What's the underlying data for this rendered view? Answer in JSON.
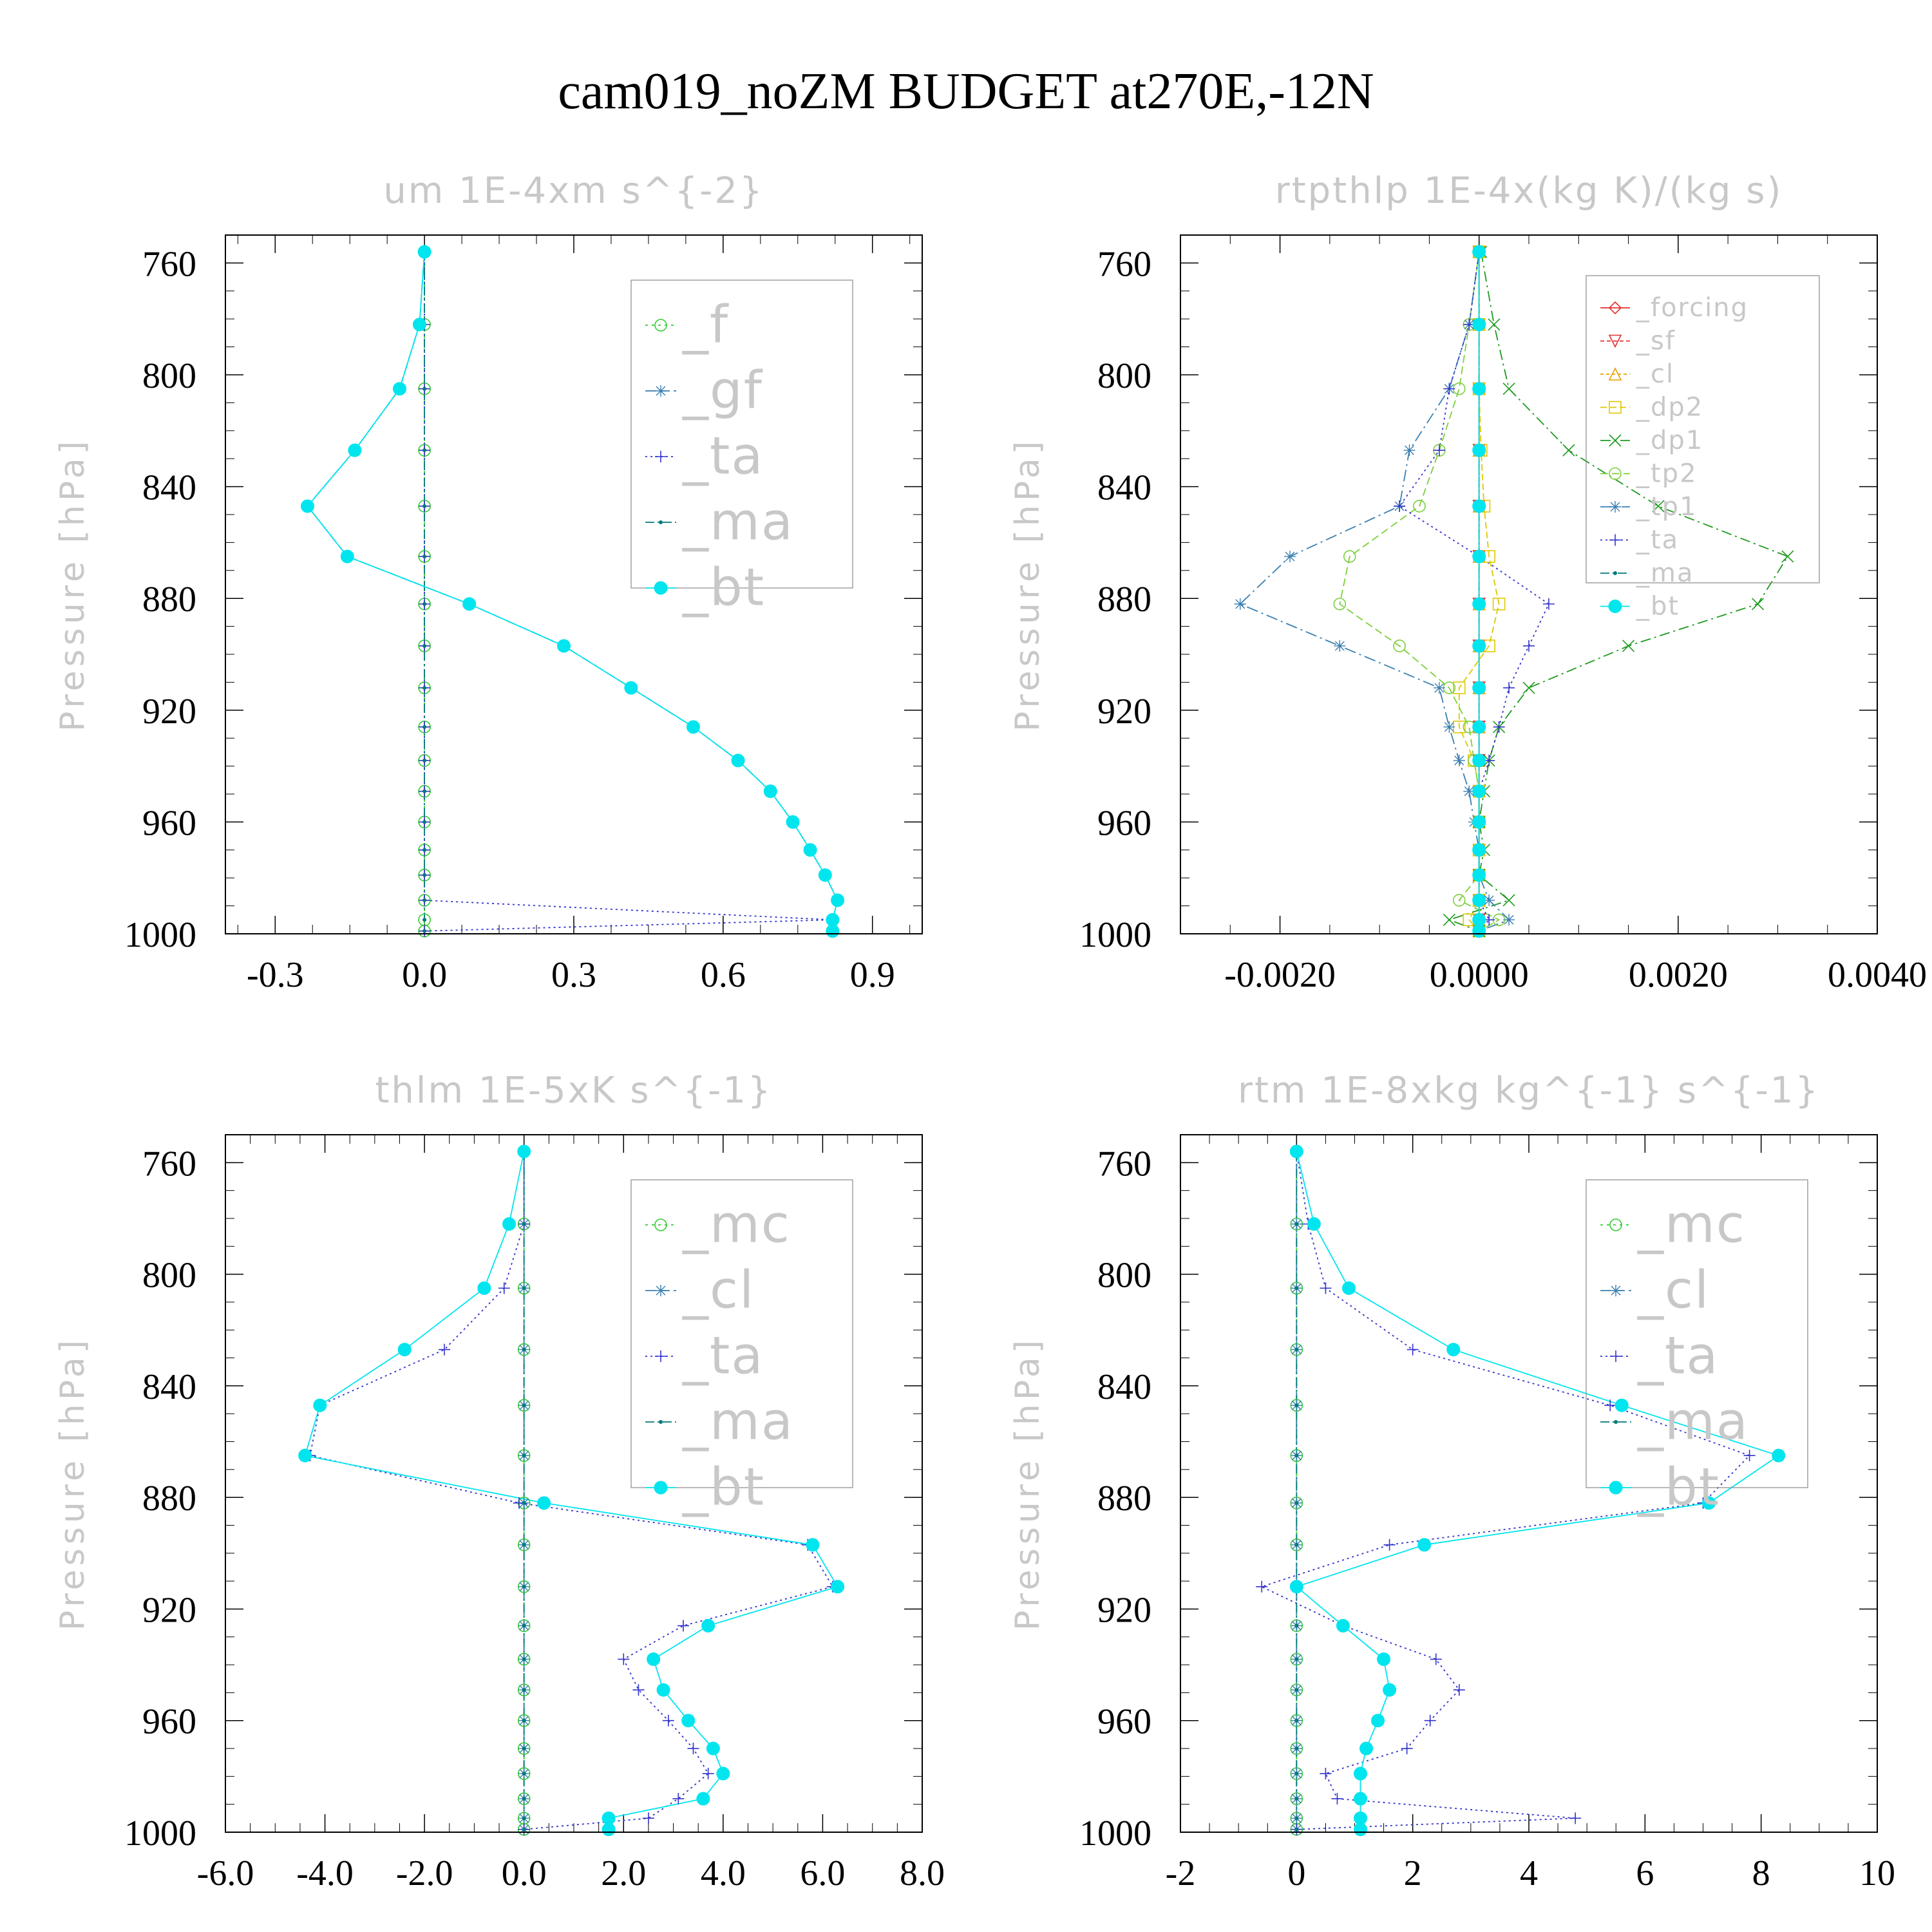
{
  "figure": {
    "title": "cam019_noZM  BUDGET at270E,-12N"
  },
  "colors": {
    "green": "#33cc33",
    "steel": "#3a7fb0",
    "blue": "#3333cc",
    "teal": "#007a7a",
    "cyan": "#00e5ee",
    "red": "#e03030",
    "orange": "#e8a000",
    "yellow": "#e0c800",
    "darkgreen": "#1e9a1e",
    "lightgreen": "#7ccf3c",
    "axis": "#000000",
    "label": "#c8c8c8"
  },
  "chart_data": [
    {
      "type": "line",
      "title": "um   1E-4xm s^{-2}",
      "ylabel": "Pressure [hPa]",
      "xlim": [
        -0.4,
        1.0
      ],
      "xticks": [
        "-0.3",
        "0.0",
        "0.3",
        "0.6",
        "0.9"
      ],
      "xtick_values": [
        -0.3,
        0.0,
        0.3,
        0.6,
        0.9
      ],
      "ylim": [
        1000,
        750
      ],
      "yticks": [
        "760",
        "800",
        "840",
        "880",
        "920",
        "960",
        "1000"
      ],
      "ytick_values": [
        760,
        800,
        840,
        880,
        920,
        960,
        1000
      ],
      "legend": "top-right",
      "y": [
        756,
        782,
        805,
        827,
        847,
        865,
        882,
        897,
        912,
        926,
        938,
        949,
        960,
        970,
        979,
        988,
        995,
        999
      ],
      "series": [
        {
          "name": "_f",
          "color": "green",
          "marker": "circle-open",
          "dash": "4,6",
          "values": [
            0,
            0,
            0,
            0,
            0,
            0,
            0,
            0,
            0,
            0,
            0,
            0,
            0,
            0,
            0,
            0,
            0,
            0
          ]
        },
        {
          "name": "_gf",
          "color": "steel",
          "marker": "star",
          "dash": "16,6",
          "values": [
            0.0,
            -0.01,
            -0.05,
            -0.14,
            -0.235,
            -0.155,
            0.09,
            0.28,
            0.415,
            0.54,
            0.63,
            0.695,
            0.74,
            0.775,
            0.805,
            0.83,
            0.82,
            0.82
          ]
        },
        {
          "name": "_ta",
          "color": "blue",
          "marker": "plus",
          "dash": "3,5",
          "values": [
            0,
            0,
            0,
            0,
            0,
            0,
            0,
            0,
            0,
            0,
            0,
            0,
            0,
            0,
            0,
            0,
            0.82,
            0.0
          ]
        },
        {
          "name": "_ma",
          "color": "teal",
          "marker": "dot",
          "dash": "14,5,3,5",
          "values": [
            0,
            0,
            0,
            0,
            0,
            0,
            0,
            0,
            0,
            0,
            0,
            0,
            0,
            0,
            0,
            0,
            0,
            0
          ]
        },
        {
          "name": "_bt",
          "color": "cyan",
          "marker": "filled-circle",
          "dash": "",
          "values": [
            0.0,
            -0.01,
            -0.05,
            -0.14,
            -0.235,
            -0.155,
            0.09,
            0.28,
            0.415,
            0.54,
            0.63,
            0.695,
            0.74,
            0.775,
            0.805,
            0.83,
            0.82,
            0.82
          ]
        }
      ]
    },
    {
      "type": "line",
      "title": "rtpthlp   1E-4x(kg K)/(kg s)",
      "ylabel": "Pressure [hPa]",
      "xlim": [
        -0.003,
        0.004
      ],
      "xticks": [
        "-0.0020",
        "0.0000",
        "0.0020",
        "0.0040"
      ],
      "xtick_values": [
        -0.002,
        0.0,
        0.002,
        0.004
      ],
      "ylim": [
        1000,
        750
      ],
      "yticks": [
        "760",
        "800",
        "840",
        "880",
        "920",
        "960",
        "1000"
      ],
      "ytick_values": [
        760,
        800,
        840,
        880,
        920,
        960,
        1000
      ],
      "legend": "top-right",
      "y": [
        756,
        782,
        805,
        827,
        847,
        865,
        882,
        897,
        912,
        926,
        938,
        949,
        960,
        970,
        979,
        988,
        995,
        999
      ],
      "series": [
        {
          "name": "_forcing",
          "color": "red",
          "marker": "diamond-open",
          "dash": "",
          "values": [
            0,
            0,
            0,
            0,
            0,
            0,
            0,
            0,
            0,
            0,
            0,
            0,
            0,
            0,
            0,
            0,
            0,
            0
          ]
        },
        {
          "name": "_sf",
          "color": "red",
          "marker": "triangle-down",
          "dash": "6,4",
          "values": [
            0,
            0,
            0,
            0,
            0,
            0,
            0,
            0,
            0,
            0,
            0,
            0,
            0,
            0,
            0,
            0,
            0,
            0
          ]
        },
        {
          "name": "_cl",
          "color": "orange",
          "marker": "triangle-up",
          "dash": "5,4",
          "values": [
            0,
            0,
            0,
            0,
            0,
            0,
            0,
            0,
            0,
            0,
            0,
            0,
            0,
            0,
            0,
            0,
            0,
            0
          ]
        },
        {
          "name": "_dp2",
          "color": "yellow",
          "marker": "square-open",
          "dash": "10,5",
          "values": [
            0.0,
            0.0,
            0.0,
            2e-05,
            5e-05,
            0.0001,
            0.0002,
            0.0001,
            -0.0002,
            -0.0002,
            -5e-05,
            0.0,
            0.0,
            0.0,
            0.0,
            0.0,
            -0.0001,
            0.0
          ]
        },
        {
          "name": "_dp1",
          "color": "darkgreen",
          "marker": "x",
          "dash": "16,6,3,6",
          "values": [
            2e-05,
            0.00015,
            0.0003,
            0.0009,
            0.0018,
            0.0031,
            0.0028,
            0.0015,
            0.0005,
            0.0002,
            0.0001,
            5e-05,
            0.0,
            5e-05,
            0.0,
            0.0003,
            -0.0003,
            0.0
          ]
        },
        {
          "name": "_tp2",
          "color": "lightgreen",
          "marker": "circle-open",
          "dash": "12,6",
          "values": [
            0.0,
            -0.0001,
            -0.0002,
            -0.0004,
            -0.0006,
            -0.0013,
            -0.0014,
            -0.0008,
            -0.0003,
            -0.0001,
            -5e-05,
            0.0,
            0.0,
            0.0,
            0.0,
            -0.0002,
            0.0002,
            0.0
          ]
        },
        {
          "name": "_tp1",
          "color": "steel",
          "marker": "star",
          "dash": "18,6,3,6",
          "values": [
            0.0,
            -0.0001,
            -0.0003,
            -0.0007,
            -0.0008,
            -0.0019,
            -0.0024,
            -0.0014,
            -0.0004,
            -0.0003,
            -0.0002,
            -0.0001,
            -5e-05,
            0.0,
            0.0,
            0.0001,
            0.0003,
            0.0
          ]
        },
        {
          "name": "_ta",
          "color": "blue",
          "marker": "plus",
          "dash": "3,5",
          "values": [
            0.0,
            -0.0001,
            -0.0003,
            -0.0004,
            -0.0008,
            0.0,
            0.0007,
            0.0005,
            0.0003,
            0.0002,
            0.0001,
            0.0,
            0.0,
            0.0,
            0.0,
            0.0,
            0.0001,
            0.0
          ]
        },
        {
          "name": "_ma",
          "color": "teal",
          "marker": "dot",
          "dash": "14,5,3,5",
          "values": [
            0,
            0,
            0,
            0,
            0,
            0,
            0,
            0,
            0,
            0,
            0,
            0,
            0,
            0,
            0,
            0,
            0,
            0
          ]
        },
        {
          "name": "_bt",
          "color": "cyan",
          "marker": "filled-circle",
          "dash": "",
          "values": [
            0,
            0,
            0,
            0,
            0,
            0,
            0,
            0,
            0,
            0,
            0,
            0,
            0,
            0,
            0,
            0,
            0,
            0
          ]
        }
      ]
    },
    {
      "type": "line",
      "title": "thlm   1E-5xK s^{-1}",
      "ylabel": "Pressure [hPa]",
      "xlim": [
        -6.0,
        8.0
      ],
      "xticks": [
        "-6.0",
        "-4.0",
        "-2.0",
        "0.0",
        "2.0",
        "4.0",
        "6.0",
        "8.0"
      ],
      "xtick_values": [
        -6.0,
        -4.0,
        -2.0,
        0.0,
        2.0,
        4.0,
        6.0,
        8.0
      ],
      "ylim": [
        1000,
        750
      ],
      "yticks": [
        "760",
        "800",
        "840",
        "880",
        "920",
        "960",
        "1000"
      ],
      "ytick_values": [
        760,
        800,
        840,
        880,
        920,
        960,
        1000
      ],
      "legend": "top-right",
      "y": [
        756,
        782,
        805,
        827,
        847,
        865,
        882,
        897,
        912,
        926,
        938,
        949,
        960,
        970,
        979,
        988,
        995,
        999
      ],
      "series": [
        {
          "name": "_mc",
          "color": "green",
          "marker": "circle-open",
          "dash": "4,6",
          "values": [
            0,
            0,
            0,
            0,
            0,
            0,
            0,
            0,
            0,
            0,
            0,
            0,
            0,
            0,
            0,
            0,
            0,
            0
          ]
        },
        {
          "name": "_cl",
          "color": "steel",
          "marker": "star",
          "dash": "16,6",
          "values": [
            0,
            0,
            0,
            0,
            0,
            0,
            0,
            0,
            0,
            0,
            0,
            0,
            0,
            0,
            0,
            0,
            0,
            0
          ]
        },
        {
          "name": "_ta",
          "color": "blue",
          "marker": "plus",
          "dash": "3,5",
          "values": [
            0.0,
            0.0,
            -0.4,
            -1.6,
            -4.1,
            -4.3,
            -0.1,
            5.7,
            6.2,
            3.2,
            2.0,
            2.3,
            2.9,
            3.4,
            3.7,
            3.1,
            2.5,
            0.0
          ]
        },
        {
          "name": "_ma",
          "color": "teal",
          "marker": "dot",
          "dash": "14,5,3,5",
          "values": [
            0,
            0,
            0,
            0,
            0,
            0,
            0,
            0,
            0,
            0,
            0,
            0,
            0,
            0,
            0,
            0,
            0,
            0
          ]
        },
        {
          "name": "_bt",
          "color": "cyan",
          "marker": "filled-circle",
          "dash": "",
          "values": [
            0.0,
            -0.3,
            -0.8,
            -2.4,
            -4.1,
            -4.4,
            0.4,
            5.8,
            6.3,
            3.7,
            2.6,
            2.8,
            3.3,
            3.8,
            4.0,
            3.6,
            1.7,
            1.7
          ]
        }
      ]
    },
    {
      "type": "line",
      "title": "rtm   1E-8xkg kg^{-1} s^{-1}",
      "ylabel": "Pressure [hPa]",
      "xlim": [
        -2,
        10
      ],
      "xticks": [
        "-2",
        "0",
        "2",
        "4",
        "6",
        "8",
        "10"
      ],
      "xtick_values": [
        -2,
        0,
        2,
        4,
        6,
        8,
        10
      ],
      "ylim": [
        1000,
        750
      ],
      "yticks": [
        "760",
        "800",
        "840",
        "880",
        "920",
        "960",
        "1000"
      ],
      "ytick_values": [
        760,
        800,
        840,
        880,
        920,
        960,
        1000
      ],
      "legend": "top-right",
      "y": [
        756,
        782,
        805,
        827,
        847,
        865,
        882,
        897,
        912,
        926,
        938,
        949,
        960,
        970,
        979,
        988,
        995,
        999
      ],
      "series": [
        {
          "name": "_mc",
          "color": "green",
          "marker": "circle-open",
          "dash": "4,6",
          "values": [
            0,
            0,
            0,
            0,
            0,
            0,
            0,
            0,
            0,
            0,
            0,
            0,
            0,
            0,
            0,
            0,
            0,
            0
          ]
        },
        {
          "name": "_cl",
          "color": "steel",
          "marker": "star",
          "dash": "16,6",
          "values": [
            0,
            0,
            0,
            0,
            0,
            0,
            0,
            0,
            0,
            0,
            0,
            0,
            0,
            0,
            0,
            0,
            0,
            0
          ]
        },
        {
          "name": "_ta",
          "color": "blue",
          "marker": "plus",
          "dash": "3,5",
          "values": [
            0.0,
            0.2,
            0.5,
            2.0,
            5.4,
            7.8,
            7.0,
            1.6,
            -0.6,
            0.8,
            2.4,
            2.8,
            2.3,
            1.9,
            0.5,
            0.7,
            4.8,
            0.0
          ]
        },
        {
          "name": "_ma",
          "color": "teal",
          "marker": "dot",
          "dash": "14,5,3,5",
          "values": [
            0,
            0,
            0,
            0,
            0,
            0,
            0,
            0,
            0,
            0,
            0,
            0,
            0,
            0,
            0,
            0,
            0,
            0
          ]
        },
        {
          "name": "_bt",
          "color": "cyan",
          "marker": "filled-circle",
          "dash": "",
          "values": [
            0.0,
            0.3,
            0.9,
            2.7,
            5.6,
            8.3,
            7.1,
            2.2,
            0.0,
            0.8,
            1.5,
            1.6,
            1.4,
            1.2,
            1.1,
            1.1,
            1.1,
            1.1
          ]
        }
      ]
    }
  ]
}
